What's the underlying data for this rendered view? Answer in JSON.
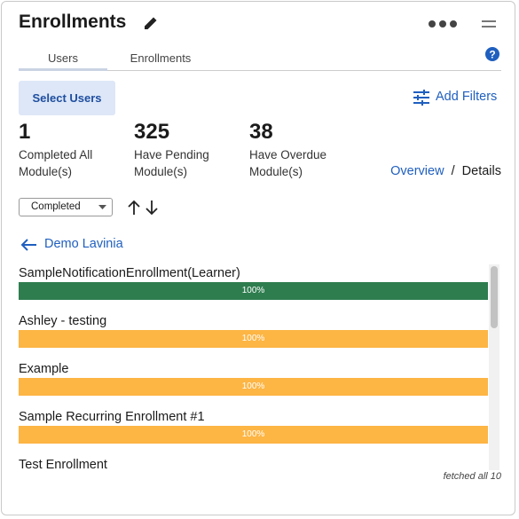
{
  "header": {
    "title": "Enrollments"
  },
  "tabs": [
    "Users",
    "Enrollments"
  ],
  "select_button": "Select Users",
  "filters_button": "Add Filters",
  "stats": [
    {
      "value": "1",
      "label_lines": [
        "Completed All",
        "Module(s)"
      ]
    },
    {
      "value": "325",
      "label_lines": [
        "Have Pending",
        "Module(s)"
      ]
    },
    {
      "value": "38",
      "label_lines": [
        "Have Overdue",
        "Module(s)"
      ]
    }
  ],
  "view_switch": {
    "overview": "Overview",
    "separator": "/",
    "details": "Details"
  },
  "sort": {
    "selected": "Completed"
  },
  "back_link": "Demo Lavinia",
  "enrollments": [
    {
      "name": "SampleNotificationEnrollment(Learner)",
      "progress": "100%",
      "color": "#2e7d4f"
    },
    {
      "name": "Ashley - testing",
      "progress": "100%",
      "color": "#fdb544"
    },
    {
      "name": "Example",
      "progress": "100%",
      "color": "#fdb544"
    },
    {
      "name": "Sample Recurring Enrollment #1",
      "progress": "100%",
      "color": "#fdb544"
    },
    {
      "name": "Test Enrollment"
    }
  ],
  "footer": "fetched all 10"
}
